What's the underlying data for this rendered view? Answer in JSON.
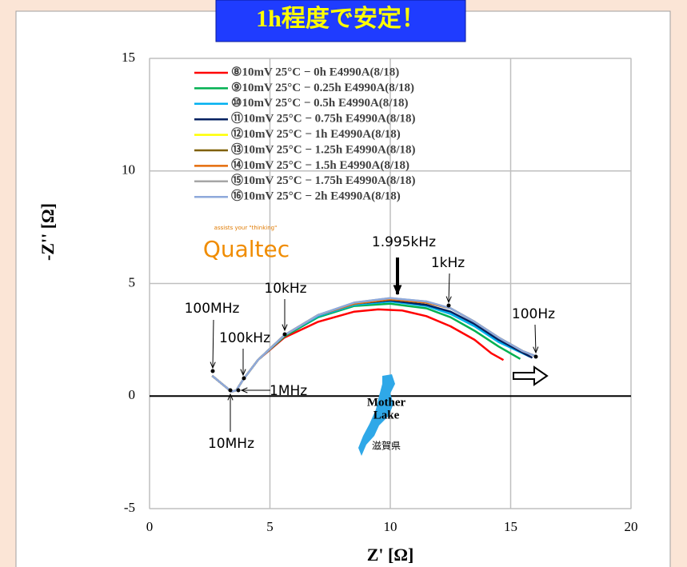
{
  "chart_data": {
    "type": "line",
    "banner": "1h程度で安定！",
    "xlabel": "Z' [Ω]",
    "ylabel": "-Z'' [Ω]",
    "xlim": [
      0,
      20
    ],
    "xticks": [
      0,
      5,
      10,
      15,
      20
    ],
    "ylim": [
      -5,
      15
    ],
    "yticks": [
      -5,
      0,
      5,
      10,
      15
    ],
    "grid": true,
    "legend": "upper-left",
    "series": [
      {
        "name": "⑧10mV 25°C − 0h E4990A(8/18)",
        "color": "#ff0000",
        "x": [
          2.6,
          3.0,
          3.4,
          3.6,
          3.9,
          4.5,
          5.6,
          7,
          8.5,
          9.5,
          10.5,
          11.5,
          12.5,
          13.5,
          14.2,
          14.7
        ],
        "values": [
          0.9,
          0.55,
          0.2,
          0.25,
          0.75,
          1.6,
          2.6,
          3.3,
          3.75,
          3.85,
          3.8,
          3.55,
          3.1,
          2.5,
          1.9,
          1.6
        ]
      },
      {
        "name": "⑨10mV 25°C − 0.25h E4990A(8/18)",
        "color": "#00b050",
        "x": [
          2.6,
          3.0,
          3.4,
          3.6,
          3.9,
          4.5,
          5.6,
          7,
          8.5,
          10,
          11.5,
          12.5,
          13.5,
          14.5,
          15.4
        ],
        "values": [
          0.9,
          0.55,
          0.2,
          0.25,
          0.75,
          1.6,
          2.65,
          3.5,
          4.0,
          4.1,
          3.9,
          3.5,
          2.9,
          2.2,
          1.65
        ]
      },
      {
        "name": "⑩10mV 25°C − 0.5h E4990A(8/18)",
        "color": "#00b0f0",
        "x": [
          2.6,
          3.0,
          3.4,
          3.6,
          3.9,
          4.5,
          5.6,
          7,
          8.5,
          10,
          11.5,
          12.5,
          13.5,
          14.5,
          15.8
        ],
        "values": [
          0.9,
          0.55,
          0.2,
          0.25,
          0.75,
          1.6,
          2.7,
          3.55,
          4.05,
          4.2,
          4.0,
          3.65,
          3.1,
          2.4,
          1.75
        ]
      },
      {
        "name": "⑪10mV 25°C − 0.75h E4990A(8/18)",
        "color": "#002060",
        "x": [
          2.6,
          3.0,
          3.4,
          3.6,
          3.9,
          4.5,
          5.6,
          7,
          8.5,
          10,
          11.5,
          12.5,
          13.5,
          14.5,
          15.9
        ],
        "values": [
          0.9,
          0.55,
          0.2,
          0.25,
          0.75,
          1.6,
          2.7,
          3.6,
          4.1,
          4.25,
          4.05,
          3.75,
          3.2,
          2.5,
          1.7
        ]
      },
      {
        "name": "⑫10mV 25°C − 1h E4990A(8/18)",
        "color": "#ffff00",
        "x": [
          2.6,
          3.0,
          3.4,
          3.6,
          3.9,
          4.5,
          5.6,
          7,
          8.5,
          10,
          11.5,
          12.5,
          13.5,
          14.5,
          15.5,
          16.1
        ],
        "values": [
          0.9,
          0.55,
          0.2,
          0.25,
          0.75,
          1.6,
          2.7,
          3.6,
          4.1,
          4.3,
          4.15,
          3.9,
          3.3,
          2.6,
          2.0,
          1.75
        ]
      },
      {
        "name": "⑬10mV 25°C − 1.25h E4990A(8/18)",
        "color": "#7f6000",
        "x": [
          2.6,
          3.0,
          3.4,
          3.6,
          3.9,
          4.5,
          5.6,
          7,
          8.5,
          10,
          11.5,
          12.5,
          13.5,
          14.5,
          15.5,
          16.1
        ],
        "values": [
          0.9,
          0.55,
          0.2,
          0.25,
          0.75,
          1.6,
          2.7,
          3.6,
          4.1,
          4.3,
          4.15,
          3.9,
          3.3,
          2.6,
          2.0,
          1.75
        ]
      },
      {
        "name": "⑭10mV 25°C − 1.5h E4990A(8/18)",
        "color": "#e46c0a",
        "x": [
          2.6,
          3.0,
          3.4,
          3.6,
          3.9,
          4.5,
          5.6,
          7,
          8.5,
          10,
          11.5,
          12.5,
          13.5,
          14.5,
          15.5,
          16.1
        ],
        "values": [
          0.9,
          0.55,
          0.2,
          0.25,
          0.75,
          1.6,
          2.7,
          3.6,
          4.1,
          4.3,
          4.15,
          3.9,
          3.3,
          2.6,
          2.0,
          1.75
        ]
      },
      {
        "name": "⑮10mV 25°C − 1.75h E4990A(8/18)",
        "color": "#a6a6a6",
        "x": [
          2.6,
          3.0,
          3.4,
          3.6,
          3.9,
          4.5,
          5.6,
          7,
          8.5,
          10,
          11.5,
          12.5,
          13.5,
          14.5,
          15.5,
          16.1
        ],
        "values": [
          0.9,
          0.55,
          0.2,
          0.25,
          0.75,
          1.6,
          2.7,
          3.6,
          4.15,
          4.35,
          4.2,
          3.9,
          3.3,
          2.6,
          2.0,
          1.75
        ]
      },
      {
        "name": "⑯10mV 25°C − 2h E4990A(8/18)",
        "color": "#8ea9db",
        "x": [
          2.6,
          3.0,
          3.4,
          3.6,
          3.9,
          4.5,
          5.6,
          7,
          8.5,
          10,
          11.5,
          12.5,
          13.5,
          14.5,
          15.5,
          16.1
        ],
        "values": [
          0.9,
          0.55,
          0.2,
          0.25,
          0.75,
          1.6,
          2.7,
          3.6,
          4.15,
          4.35,
          4.2,
          3.9,
          3.3,
          2.6,
          2.0,
          1.75
        ]
      }
    ],
    "annotations": [
      "100MHz",
      "100kHz",
      "10kHz",
      "1MHz",
      "10MHz",
      "1.995kHz",
      "1kHz",
      "100Hz"
    ],
    "logo": "Qualtec",
    "logo_tagline": "assists your \"thinking\"",
    "lake_line1": "Mother",
    "lake_line2": "Lake",
    "prefecture": "滋賀県"
  }
}
